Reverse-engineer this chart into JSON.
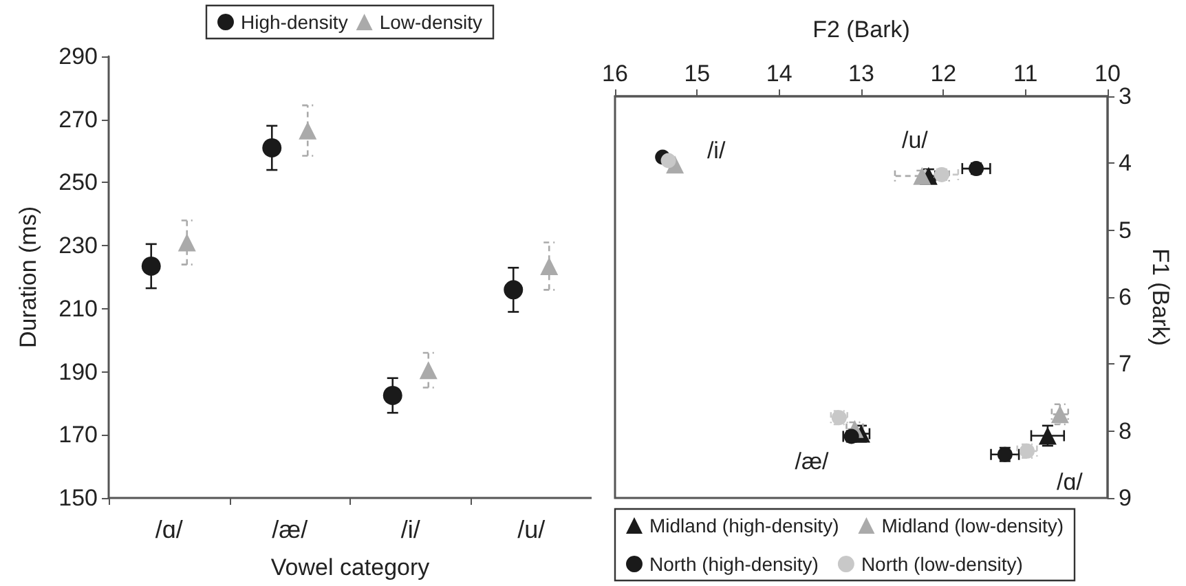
{
  "chart_data": [
    {
      "type": "scatter",
      "xlabel": "Vowel category",
      "ylabel": "Duration (ms)",
      "categories": [
        "/ɑ/",
        "/æ/",
        "/i/",
        "/u/"
      ],
      "ylim": [
        150,
        290
      ],
      "yticks": [
        150,
        170,
        190,
        210,
        230,
        250,
        270,
        290
      ],
      "grid": false,
      "legend": "top",
      "series": [
        {
          "name": "High-density",
          "color": "#1a1a1a",
          "marker": "circle",
          "line_style": "solid",
          "values": [
            223.5,
            261,
            182.5,
            216
          ],
          "errors": [
            7,
            7,
            5.5,
            7
          ]
        },
        {
          "name": "Low-density",
          "color": "#aaaaaa",
          "marker": "triangle",
          "line_style": "dashed",
          "values": [
            231,
            266.5,
            190.5,
            223.5
          ],
          "errors": [
            7,
            8,
            5.5,
            7.5
          ]
        }
      ]
    },
    {
      "type": "scatter",
      "xlabel": "F2 (Bark)",
      "ylabel": "F1 (Bark)",
      "xlim": [
        16,
        10
      ],
      "xticks": [
        16,
        15,
        14,
        13,
        12,
        11,
        10
      ],
      "ylim": [
        9,
        3
      ],
      "yticks": [
        3,
        4,
        5,
        6,
        7,
        8,
        9
      ],
      "grid": false,
      "legend": "bottom",
      "annotations": [
        "/i/",
        "/u/",
        "/æ/",
        "/ɑ/"
      ],
      "series": [
        {
          "name": "Midland (high-density)",
          "color": "#1a1a1a",
          "marker": "triangle",
          "line_style": "solid",
          "x": [
            null,
            12.18,
            13.0,
            10.73
          ],
          "values": [
            null,
            4.19,
            8.04,
            8.07
          ],
          "errors": [
            null,
            0.1,
            0.12,
            0.15
          ],
          "xerrors": [
            null,
            0.08,
            0.1,
            0.2
          ]
        },
        {
          "name": "Midland (low-density)",
          "color": "#aaaaaa",
          "marker": "triangle",
          "line_style": "dashed",
          "x": [
            15.27,
            12.26,
            13.08,
            10.58
          ],
          "values": [
            4.02,
            4.19,
            7.97,
            7.75
          ],
          "errors": [
            null,
            0.08,
            0.1,
            0.15
          ],
          "xerrors": [
            null,
            0.33,
            0.1,
            0.1
          ]
        },
        {
          "name": "North (high-density)",
          "color": "#1a1a1a",
          "marker": "circle",
          "line_style": "solid",
          "x": [
            15.42,
            11.6,
            13.12,
            11.25
          ],
          "values": [
            3.91,
            4.08,
            8.08,
            8.35
          ],
          "errors": [
            null,
            0.08,
            0.08,
            0.1
          ],
          "xerrors": [
            null,
            0.17,
            0.1,
            0.17
          ]
        },
        {
          "name": "North (low-density)",
          "color": "#c8c8c8",
          "marker": "circle",
          "line_style": "dashed",
          "x": [
            15.35,
            12.02,
            13.27,
            10.98
          ],
          "values": [
            3.96,
            4.17,
            7.8,
            8.3
          ],
          "errors": [
            null,
            0.08,
            0.1,
            0.1
          ],
          "xerrors": [
            null,
            0.2,
            0.1,
            0.12
          ]
        }
      ]
    }
  ]
}
